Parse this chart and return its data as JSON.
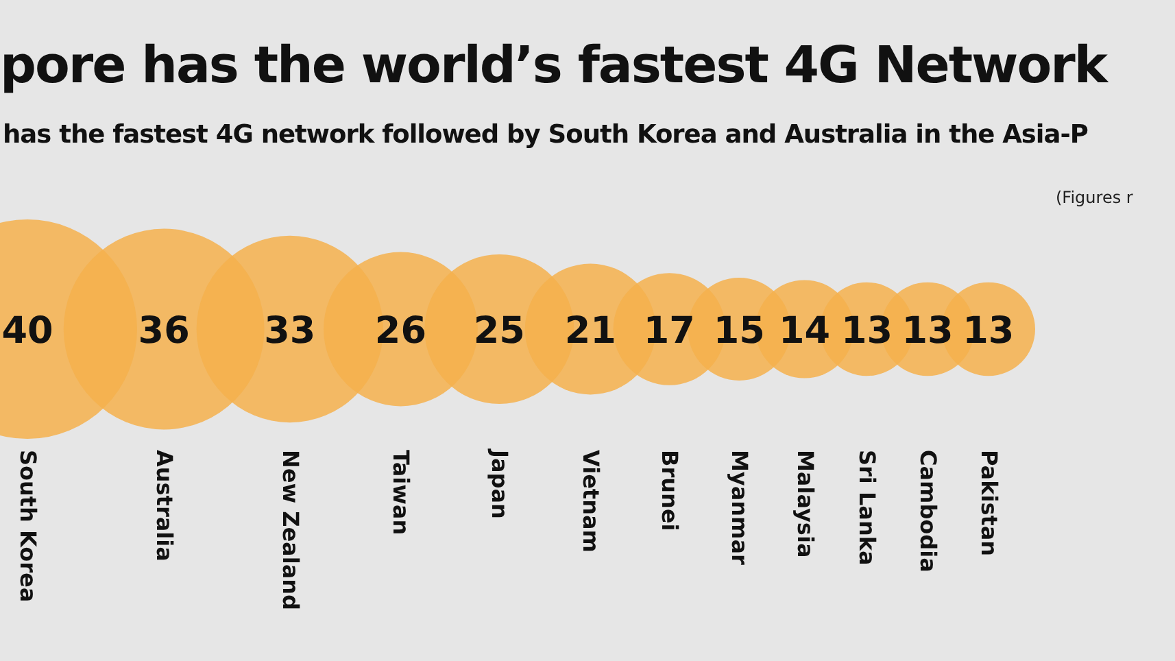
{
  "chart_data": {
    "type": "other",
    "title": "pore has the world’s fastest 4G Network",
    "subtitle": "has the fastest 4G network followed by South Korea and Australia in the Asia-P",
    "annotations": [
      "(Figures r"
    ],
    "categories": [
      "South Korea",
      "Australia",
      "New Zealand",
      "Taiwan",
      "Japan",
      "Vietnam",
      "Brunei",
      "Myanmar",
      "Malaysia",
      "Sri Lanka",
      "Cambodia",
      "Pakistan"
    ],
    "values": [
      40,
      36,
      33,
      26,
      25,
      21,
      17,
      15,
      14,
      13,
      13,
      13
    ],
    "color": "#f5b04c",
    "data_labels": true
  }
}
